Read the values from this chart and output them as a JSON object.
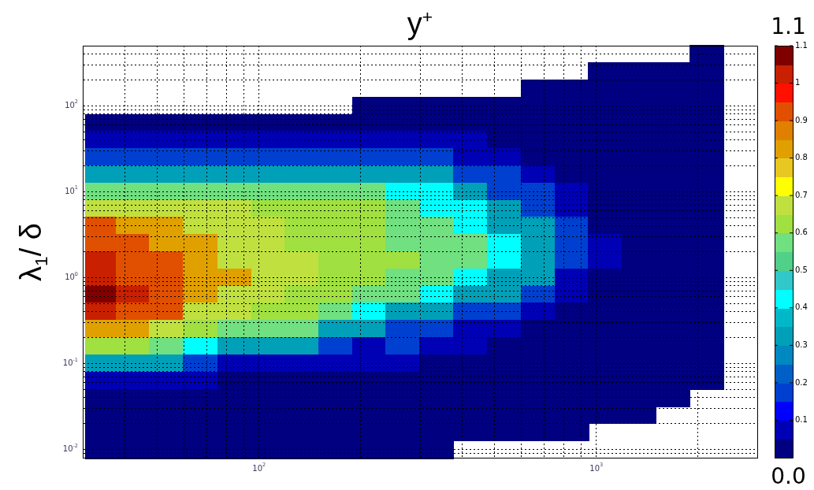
{
  "chart_data": {
    "type": "heatmap",
    "xlabel": "y$^{+}$",
    "ylabel": "λ$_{1}$/ δ",
    "x": [
      34,
      42,
      53,
      67,
      85,
      106,
      134,
      169,
      212,
      267,
      337,
      424,
      533,
      671,
      845,
      1064,
      1340,
      1687,
      2123
    ],
    "y": [
      398,
      251,
      158,
      100,
      63,
      40,
      25,
      16,
      10,
      6.3,
      4,
      2.5,
      1.6,
      1,
      0.63,
      0.4,
      0.25,
      0.16,
      0.1,
      0.063,
      0.04,
      0.025,
      0.016,
      0.01
    ],
    "cells": [
      [
        null,
        null,
        null,
        null,
        null,
        null,
        null,
        null,
        null,
        null,
        null,
        null,
        null,
        null,
        null,
        null,
        null,
        null,
        0.02
      ],
      [
        null,
        null,
        null,
        null,
        null,
        null,
        null,
        null,
        null,
        null,
        null,
        null,
        null,
        null,
        null,
        0.02,
        0.02,
        0.02,
        0.02
      ],
      [
        null,
        null,
        null,
        null,
        null,
        null,
        null,
        null,
        null,
        null,
        null,
        null,
        null,
        0.02,
        0.02,
        0.02,
        0.02,
        0.02,
        0.02
      ],
      [
        null,
        null,
        null,
        null,
        null,
        null,
        null,
        null,
        0.02,
        0.02,
        0.02,
        0.02,
        0.02,
        0.02,
        0.02,
        0.02,
        0.02,
        0.02,
        0.02
      ],
      [
        0.02,
        0.02,
        0.02,
        0.02,
        0.02,
        0.02,
        0.02,
        0.02,
        0.02,
        0.02,
        0.02,
        0.02,
        0.02,
        0.02,
        0.02,
        0.02,
        0.02,
        0.02,
        0.02
      ],
      [
        0.08,
        0.08,
        0.08,
        0.08,
        0.08,
        0.08,
        0.08,
        0.08,
        0.08,
        0.08,
        0.08,
        0.08,
        0.02,
        0.02,
        0.02,
        0.02,
        0.02,
        0.02,
        0.02
      ],
      [
        0.17,
        0.17,
        0.17,
        0.17,
        0.17,
        0.17,
        0.17,
        0.17,
        0.17,
        0.17,
        0.17,
        0.08,
        0.08,
        0.02,
        0.02,
        0.02,
        0.02,
        0.02,
        0.02
      ],
      [
        0.3,
        0.3,
        0.3,
        0.3,
        0.3,
        0.3,
        0.3,
        0.3,
        0.3,
        0.3,
        0.3,
        0.17,
        0.17,
        0.08,
        0.02,
        0.02,
        0.02,
        0.02,
        0.02
      ],
      [
        0.55,
        0.55,
        0.55,
        0.55,
        0.55,
        0.55,
        0.55,
        0.55,
        0.55,
        0.4,
        0.4,
        0.3,
        0.17,
        0.17,
        0.08,
        0.02,
        0.02,
        0.02,
        0.02
      ],
      [
        0.7,
        0.7,
        0.7,
        0.7,
        0.7,
        0.62,
        0.62,
        0.62,
        0.62,
        0.55,
        0.4,
        0.4,
        0.3,
        0.17,
        0.08,
        0.02,
        0.02,
        0.02,
        0.02
      ],
      [
        0.92,
        0.85,
        0.85,
        0.7,
        0.7,
        0.7,
        0.62,
        0.62,
        0.62,
        0.55,
        0.55,
        0.4,
        0.3,
        0.3,
        0.17,
        0.02,
        0.02,
        0.02,
        0.02
      ],
      [
        0.92,
        0.92,
        0.85,
        0.85,
        0.7,
        0.7,
        0.62,
        0.62,
        0.62,
        0.55,
        0.55,
        0.55,
        0.4,
        0.3,
        0.17,
        0.08,
        0.02,
        0.02,
        0.02
      ],
      [
        1.0,
        0.92,
        0.92,
        0.85,
        0.7,
        0.7,
        0.7,
        0.62,
        0.62,
        0.62,
        0.55,
        0.55,
        0.4,
        0.3,
        0.17,
        0.08,
        0.02,
        0.02,
        0.02
      ],
      [
        1.0,
        0.92,
        0.92,
        0.85,
        0.85,
        0.7,
        0.7,
        0.62,
        0.62,
        0.55,
        0.55,
        0.4,
        0.3,
        0.3,
        0.08,
        0.02,
        0.02,
        0.02,
        0.02
      ],
      [
        1.07,
        1.0,
        0.92,
        0.85,
        0.7,
        0.7,
        0.62,
        0.62,
        0.55,
        0.55,
        0.4,
        0.3,
        0.3,
        0.17,
        0.08,
        0.02,
        0.02,
        0.02,
        0.02
      ],
      [
        1.0,
        0.92,
        0.92,
        0.7,
        0.7,
        0.62,
        0.62,
        0.55,
        0.4,
        0.3,
        0.3,
        0.17,
        0.17,
        0.08,
        0.02,
        0.02,
        0.02,
        0.02,
        0.02
      ],
      [
        0.85,
        0.85,
        0.7,
        0.62,
        0.55,
        0.55,
        0.55,
        0.3,
        0.3,
        0.17,
        0.17,
        0.08,
        0.08,
        0.02,
        0.02,
        0.02,
        0.02,
        0.02,
        0.02
      ],
      [
        0.62,
        0.62,
        0.55,
        0.4,
        0.3,
        0.3,
        0.3,
        0.17,
        0.08,
        0.17,
        0.08,
        0.08,
        0.02,
        0.02,
        0.02,
        0.02,
        0.02,
        0.02,
        0.02
      ],
      [
        0.3,
        0.3,
        0.3,
        0.17,
        0.08,
        0.08,
        0.08,
        0.08,
        0.08,
        0.08,
        0.02,
        0.02,
        0.02,
        0.02,
        0.02,
        0.02,
        0.02,
        0.02,
        0.02
      ],
      [
        0.08,
        0.08,
        0.08,
        0.08,
        0.02,
        0.02,
        0.02,
        0.02,
        0.02,
        0.02,
        0.02,
        0.02,
        0.02,
        0.02,
        0.02,
        0.02,
        0.02,
        0.02,
        0.02
      ],
      [
        0.02,
        0.02,
        0.02,
        0.02,
        0.02,
        0.02,
        0.02,
        0.02,
        0.02,
        0.02,
        0.02,
        0.02,
        0.02,
        0.02,
        0.02,
        0.02,
        0.02,
        0.02,
        null
      ],
      [
        0.02,
        0.02,
        0.02,
        0.02,
        0.02,
        0.02,
        0.02,
        0.02,
        0.02,
        0.02,
        0.02,
        0.02,
        0.02,
        0.02,
        0.02,
        0.02,
        0.02,
        null,
        null
      ],
      [
        0.02,
        0.02,
        0.02,
        0.02,
        0.02,
        0.02,
        0.02,
        0.02,
        0.02,
        0.02,
        0.02,
        0.02,
        0.02,
        0.02,
        0.02,
        null,
        null,
        null,
        null
      ],
      [
        0.02,
        0.02,
        0.02,
        0.02,
        0.02,
        0.02,
        0.02,
        0.02,
        0.02,
        0.02,
        0.02,
        null,
        null,
        null,
        null,
        null,
        null,
        null,
        null
      ]
    ],
    "xlim": [
      30,
      3000
    ],
    "xticks": [
      {
        "value": 40,
        "label": null
      },
      {
        "value": 50,
        "label": null
      },
      {
        "value": 60,
        "label": null
      },
      {
        "value": 70,
        "label": null
      },
      {
        "value": 80,
        "label": null
      },
      {
        "value": 90,
        "label": null
      },
      {
        "value": 100,
        "label": "10$^{2}$"
      },
      {
        "value": 200,
        "label": null
      },
      {
        "value": 300,
        "label": null
      },
      {
        "value": 400,
        "label": null
      },
      {
        "value": 500,
        "label": null
      },
      {
        "value": 600,
        "label": null
      },
      {
        "value": 700,
        "label": null
      },
      {
        "value": 800,
        "label": null
      },
      {
        "value": 900,
        "label": null
      },
      {
        "value": 1000,
        "label": "10$^{3}$"
      },
      {
        "value": 2000,
        "label": null
      }
    ],
    "ylim": [
      0.008,
      500
    ],
    "yticks": [
      {
        "value": 0.009,
        "label": null
      },
      {
        "value": 0.01,
        "label": "10$^{-2}$"
      },
      {
        "value": 0.02,
        "label": null
      },
      {
        "value": 0.03,
        "label": null
      },
      {
        "value": 0.04,
        "label": null
      },
      {
        "value": 0.05,
        "label": null
      },
      {
        "value": 0.06,
        "label": null
      },
      {
        "value": 0.07,
        "label": null
      },
      {
        "value": 0.08,
        "label": null
      },
      {
        "value": 0.09,
        "label": null
      },
      {
        "value": 0.1,
        "label": "10$^{-1}$"
      },
      {
        "value": 0.2,
        "label": null
      },
      {
        "value": 0.3,
        "label": null
      },
      {
        "value": 0.4,
        "label": null
      },
      {
        "value": 0.5,
        "label": null
      },
      {
        "value": 0.6,
        "label": null
      },
      {
        "value": 0.7,
        "label": null
      },
      {
        "value": 0.8,
        "label": null
      },
      {
        "value": 0.9,
        "label": null
      },
      {
        "value": 1,
        "label": "10$^{0}$"
      },
      {
        "value": 2,
        "label": null
      },
      {
        "value": 3,
        "label": null
      },
      {
        "value": 4,
        "label": null
      },
      {
        "value": 5,
        "label": null
      },
      {
        "value": 6,
        "label": null
      },
      {
        "value": 7,
        "label": null
      },
      {
        "value": 8,
        "label": null
      },
      {
        "value": 9,
        "label": null
      },
      {
        "value": 10,
        "label": "10$^{1}$"
      },
      {
        "value": 20,
        "label": null
      },
      {
        "value": 30,
        "label": null
      },
      {
        "value": 40,
        "label": null
      },
      {
        "value": 50,
        "label": null
      },
      {
        "value": 60,
        "label": null
      },
      {
        "value": 70,
        "label": null
      },
      {
        "value": 80,
        "label": null
      },
      {
        "value": 90,
        "label": null
      },
      {
        "value": 100,
        "label": "10$^{2}$"
      },
      {
        "value": 200,
        "label": null
      },
      {
        "value": 300,
        "label": null
      },
      {
        "value": 400,
        "label": null
      }
    ],
    "log": "xy",
    "grid": true,
    "clim": [
      0,
      1.1
    ],
    "cticks": [
      0.1,
      0.2,
      0.3,
      0.4,
      0.5,
      0.6,
      0.7,
      0.8,
      0.9,
      1,
      1.1
    ],
    "annotations": [
      "1.1",
      "0.0"
    ]
  }
}
